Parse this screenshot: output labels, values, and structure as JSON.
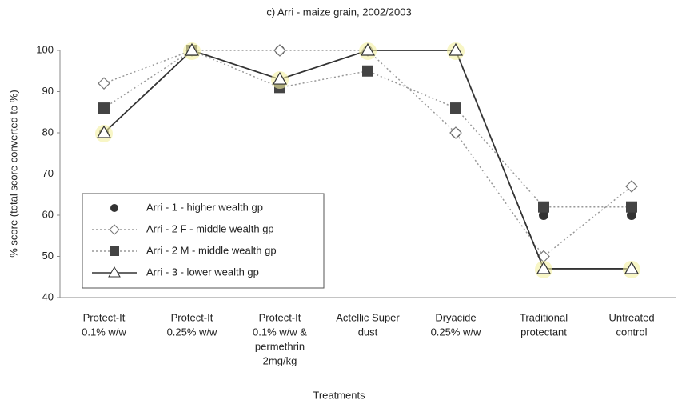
{
  "chart_data": {
    "type": "line",
    "title": "c) Arri - maize grain, 2002/2003",
    "x_label": "Treatments",
    "y_label": "% score (total score converted to %)",
    "categories": [
      [
        "Protect-It",
        "0.1% w/w"
      ],
      [
        "Protect-It",
        "0.25% w/w"
      ],
      [
        "Protect-It",
        "0.1% w/w &",
        "permethrin",
        "2mg/kg"
      ],
      [
        "Actellic Super",
        "dust"
      ],
      [
        "Dryacide",
        "0.25% w/w"
      ],
      [
        "Traditional",
        "protectant"
      ],
      [
        "Untreated",
        "control"
      ]
    ],
    "series": [
      {
        "name": "Arri - 1 - higher wealth gp",
        "color": "#333333",
        "marker": "circle",
        "line_style": "none",
        "values": [
          80,
          100,
          100,
          100,
          80,
          60,
          60
        ]
      },
      {
        "name": "Arri - 2 F - middle wealth gp",
        "color": "#777777",
        "marker": "diamond",
        "line_style": "dotted",
        "values": [
          92,
          100,
          100,
          100,
          80,
          50,
          67
        ]
      },
      {
        "name": "Arri - 2 M - middle wealth gp",
        "color": "#444444",
        "marker": "square",
        "line_style": "dotted",
        "values": [
          86,
          100,
          91,
          95,
          86,
          62,
          62
        ]
      },
      {
        "name": "Arri - 3 - lower wealth gp",
        "color": "#333333",
        "marker": "triangle",
        "line_style": "solid",
        "values": [
          80,
          100,
          93,
          100,
          100,
          47,
          47
        ]
      }
    ],
    "ylim": [
      40,
      100
    ],
    "yticks": [
      40,
      50,
      60,
      70,
      80,
      90,
      100
    ],
    "legend": "lower left"
  }
}
